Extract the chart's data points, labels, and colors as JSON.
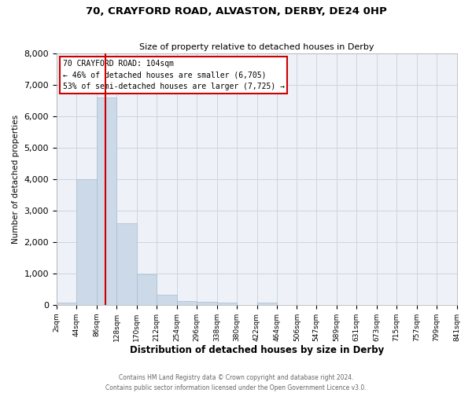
{
  "title_line1": "70, CRAYFORD ROAD, ALVASTON, DERBY, DE24 0HP",
  "title_line2": "Size of property relative to detached houses in Derby",
  "xlabel": "Distribution of detached houses by size in Derby",
  "ylabel": "Number of detached properties",
  "bin_edges": [
    2,
    44,
    86,
    128,
    170,
    212,
    254,
    296,
    338,
    380,
    422,
    464,
    506,
    547,
    589,
    631,
    673,
    715,
    757,
    799,
    841
  ],
  "bin_labels": [
    "2sqm",
    "44sqm",
    "86sqm",
    "128sqm",
    "170sqm",
    "212sqm",
    "254sqm",
    "296sqm",
    "338sqm",
    "380sqm",
    "422sqm",
    "464sqm",
    "506sqm",
    "547sqm",
    "589sqm",
    "631sqm",
    "673sqm",
    "715sqm",
    "757sqm",
    "799sqm",
    "841sqm"
  ],
  "counts": [
    60,
    4000,
    6600,
    2600,
    975,
    330,
    120,
    100,
    60,
    0,
    60,
    0,
    0,
    0,
    0,
    0,
    0,
    0,
    0,
    0
  ],
  "bar_color": "#ccd9e8",
  "bar_edge_color": "#aabccc",
  "property_line_x": 104,
  "annotation_line1": "70 CRAYFORD ROAD: 104sqm",
  "annotation_line2": "← 46% of detached houses are smaller (6,705)",
  "annotation_line3": "53% of semi-detached houses are larger (7,725) →",
  "red_line_color": "#cc0000",
  "grid_color": "#ccd5e0",
  "background_color": "#eef2f8",
  "ylim": [
    0,
    8000
  ],
  "yticks": [
    0,
    1000,
    2000,
    3000,
    4000,
    5000,
    6000,
    7000,
    8000
  ],
  "footer_line1": "Contains HM Land Registry data © Crown copyright and database right 2024.",
  "footer_line2": "Contains public sector information licensed under the Open Government Licence v3.0."
}
